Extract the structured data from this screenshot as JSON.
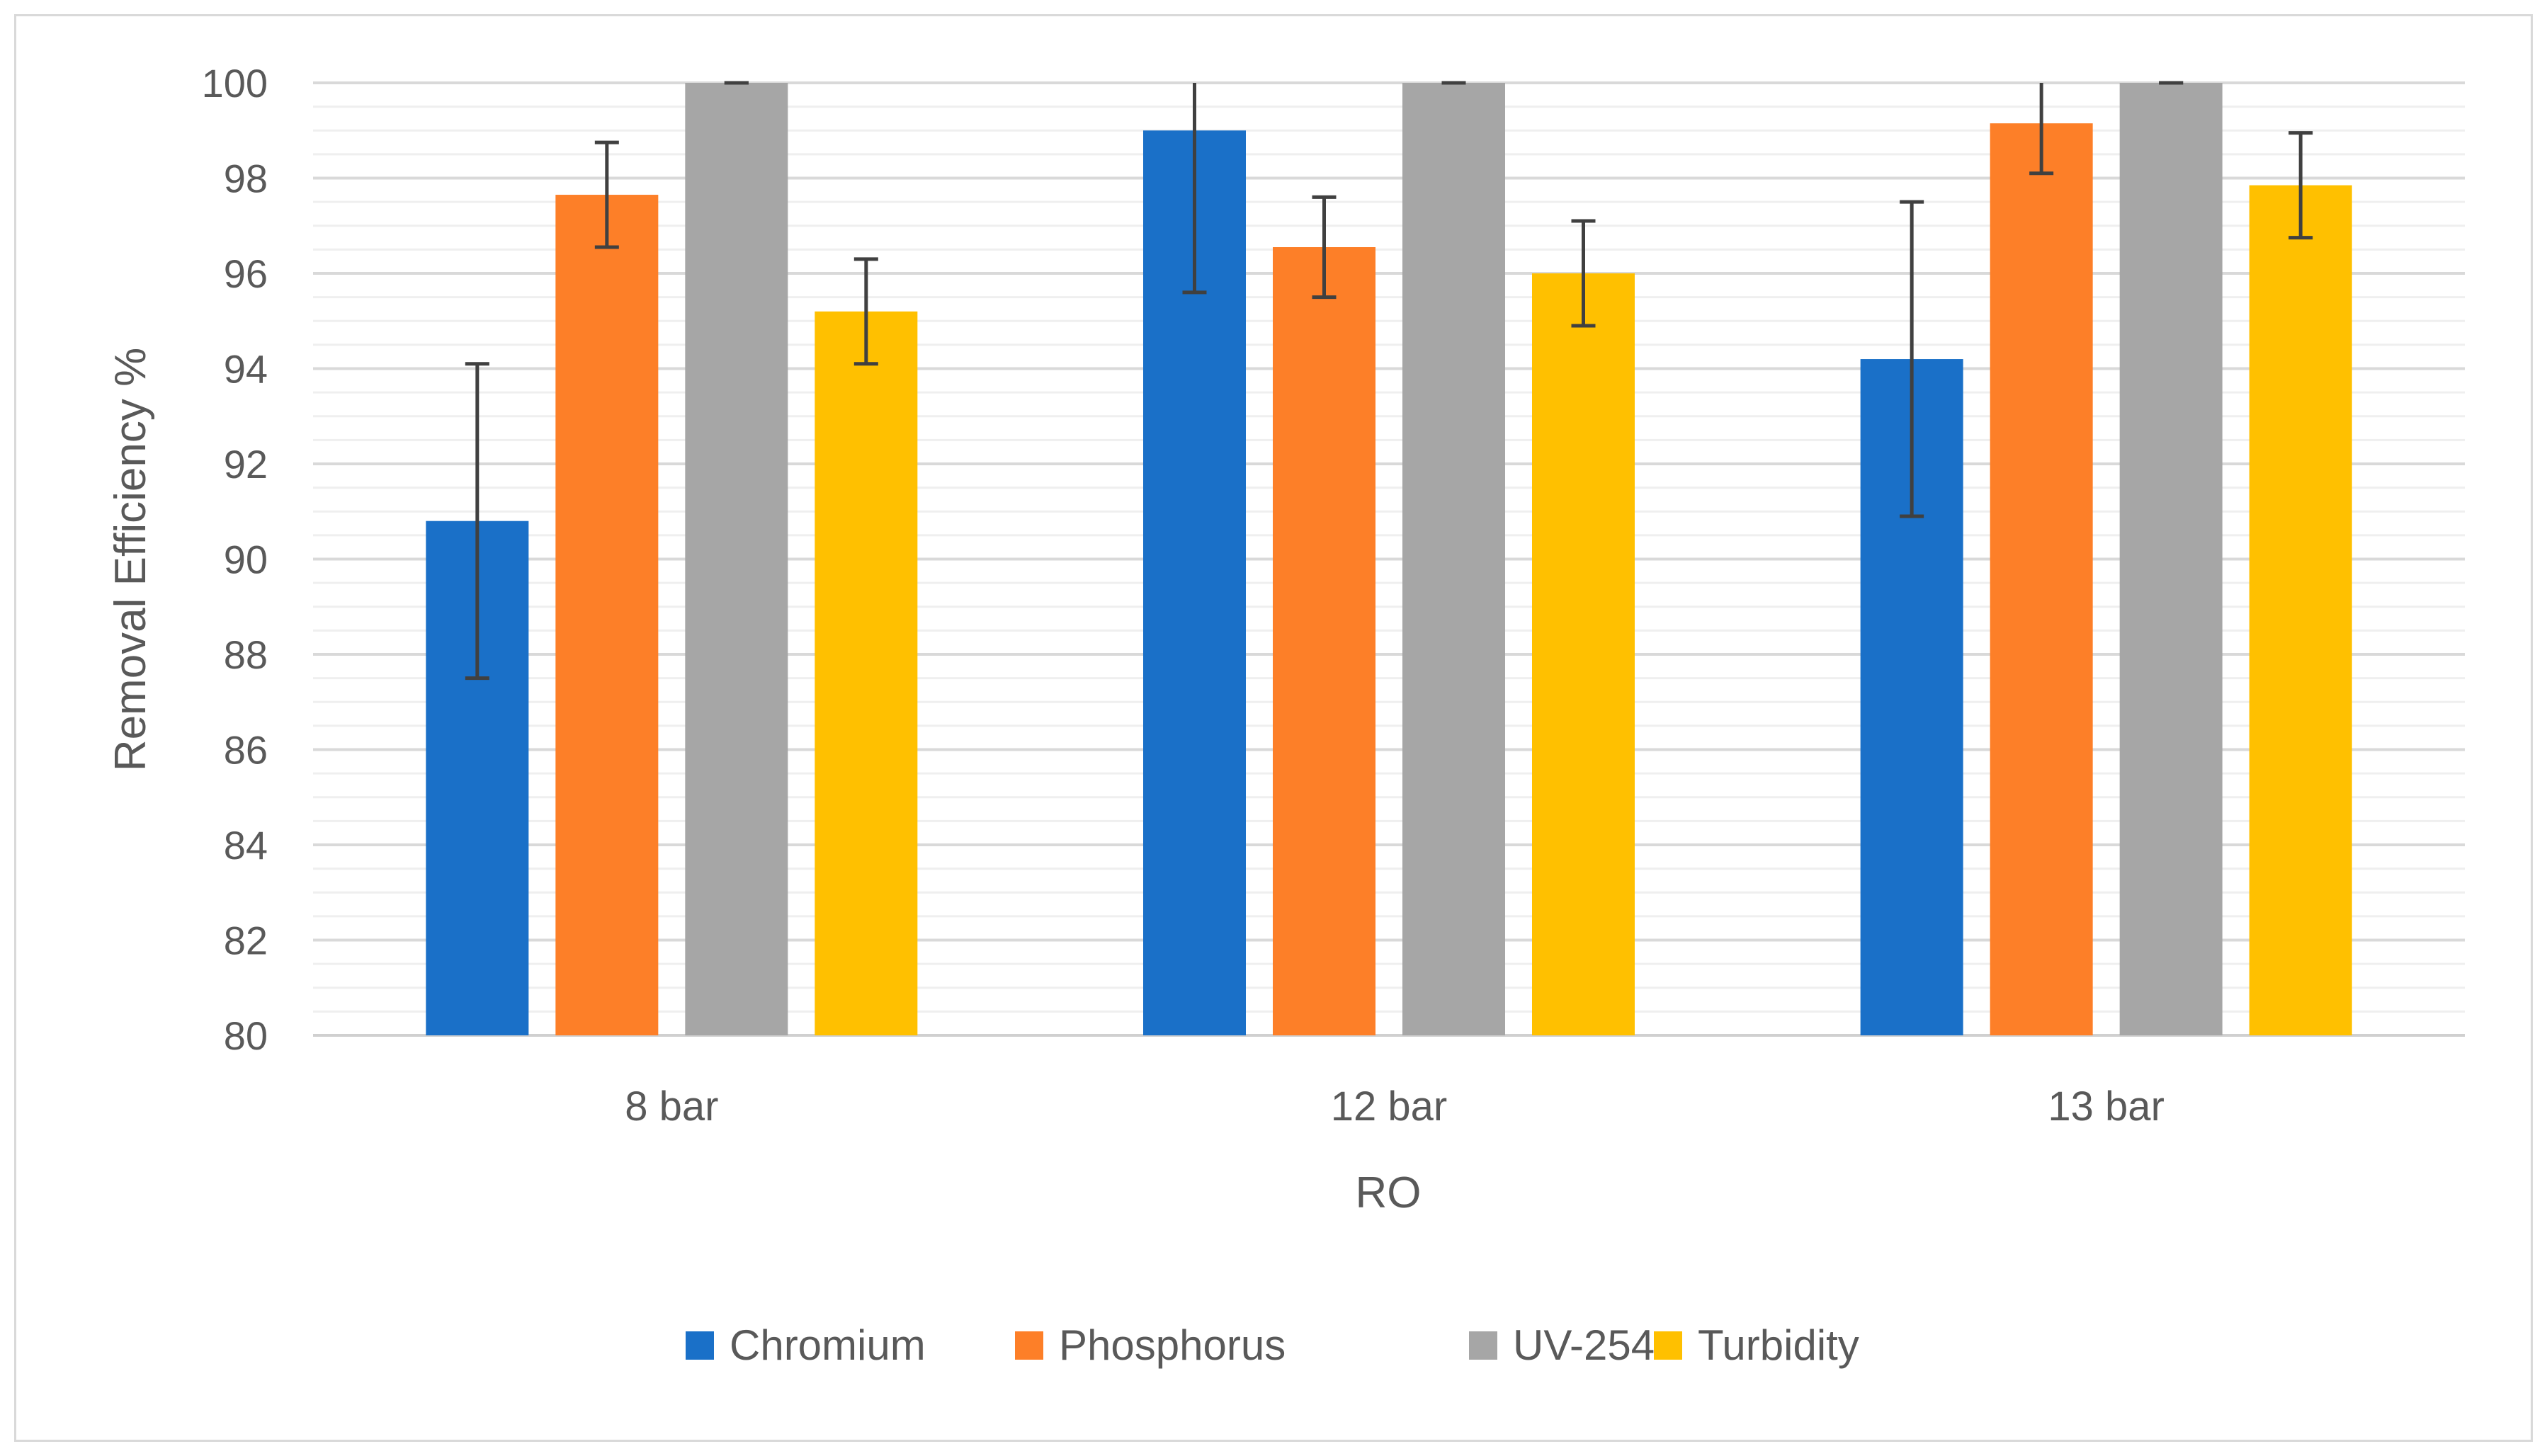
{
  "chart_data": {
    "type": "bar",
    "title": "",
    "xlabel": "RO",
    "ylabel": "Removal Efficiency %",
    "ylim": [
      80,
      100
    ],
    "y_major_step": 2,
    "y_minor_step": 0.5,
    "categories": [
      "8 bar",
      "12 bar",
      "13 bar"
    ],
    "series": [
      {
        "name": "Chromium",
        "color": "#1a70c8",
        "values": [
          90.8,
          99.0,
          94.2
        ],
        "errors": [
          3.3,
          3.4,
          3.3
        ]
      },
      {
        "name": "Phosphorus",
        "color": "#fd7f28",
        "values": [
          97.65,
          96.55,
          99.15
        ],
        "errors": [
          1.1,
          1.05,
          1.05
        ]
      },
      {
        "name": "UV-254",
        "color": "#a6a6a6",
        "values": [
          100,
          100,
          100
        ],
        "errors": [
          0,
          0,
          0
        ]
      },
      {
        "name": "Turbidity",
        "color": "#ffc000",
        "values": [
          95.2,
          96.0,
          97.85
        ],
        "errors": [
          1.1,
          1.1,
          1.1
        ]
      }
    ],
    "legend_position": "bottom",
    "grid": true
  },
  "y_ticks": [
    "80",
    "82",
    "84",
    "86",
    "88",
    "90",
    "92",
    "94",
    "96",
    "98",
    "100"
  ]
}
